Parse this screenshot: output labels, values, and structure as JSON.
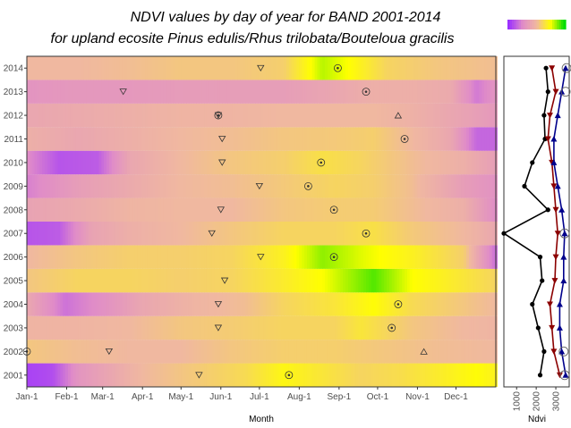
{
  "chart_data": [
    {
      "type": "heatmap",
      "title": "NDVI values by day of year for BAND 2001-2014",
      "subtitle": "for upland ecosite Pinus edulis/Rhus trilobata/Bouteloua gracilis",
      "xlabel": "Month",
      "ylabel": "",
      "x_tick_labels": [
        "Jan-1",
        "Feb-1",
        "Mar-1",
        "Apr-1",
        "May-1",
        "Jun-1",
        "Jul-1",
        "Aug-1",
        "Sep-1",
        "Oct-1",
        "Nov-1",
        "Dec-1"
      ],
      "x_tick_days": [
        1,
        32,
        60,
        91,
        121,
        152,
        182,
        213,
        244,
        274,
        305,
        335
      ],
      "xlim": [
        1,
        366
      ],
      "years": [
        "2001",
        "2002",
        "2003",
        "2004",
        "2005",
        "2006",
        "2007",
        "2008",
        "2009",
        "2010",
        "2011",
        "2012",
        "2013",
        "2014"
      ],
      "colorscale": [
        "#9b30ff",
        "#e08cc8",
        "#f0b8a0",
        "#ffff00",
        "#00dd00"
      ],
      "ndvi_profile_knots": [
        [
          [
            1,
            0.05
          ],
          [
            20,
            0.08
          ],
          [
            40,
            0.3
          ],
          [
            60,
            0.38
          ],
          [
            90,
            0.5
          ],
          [
            130,
            0.56
          ],
          [
            170,
            0.62
          ],
          [
            200,
            0.72
          ],
          [
            230,
            0.66
          ],
          [
            260,
            0.6
          ],
          [
            290,
            0.63
          ],
          [
            320,
            0.68
          ],
          [
            350,
            0.74
          ],
          [
            366,
            0.7
          ]
        ],
        [
          [
            1,
            0.55
          ],
          [
            40,
            0.52
          ],
          [
            80,
            0.5
          ],
          [
            120,
            0.5
          ],
          [
            160,
            0.55
          ],
          [
            200,
            0.58
          ],
          [
            240,
            0.58
          ],
          [
            280,
            0.55
          ],
          [
            320,
            0.52
          ],
          [
            366,
            0.5
          ]
        ],
        [
          [
            1,
            0.48
          ],
          [
            40,
            0.48
          ],
          [
            80,
            0.5
          ],
          [
            120,
            0.55
          ],
          [
            160,
            0.57
          ],
          [
            200,
            0.6
          ],
          [
            240,
            0.6
          ],
          [
            260,
            0.66
          ],
          [
            300,
            0.55
          ],
          [
            340,
            0.5
          ],
          [
            366,
            0.48
          ]
        ],
        [
          [
            1,
            0.4
          ],
          [
            30,
            0.18
          ],
          [
            60,
            0.28
          ],
          [
            90,
            0.4
          ],
          [
            130,
            0.48
          ],
          [
            170,
            0.52
          ],
          [
            200,
            0.6
          ],
          [
            240,
            0.66
          ],
          [
            270,
            0.74
          ],
          [
            300,
            0.62
          ],
          [
            340,
            0.55
          ],
          [
            366,
            0.5
          ]
        ],
        [
          [
            1,
            0.55
          ],
          [
            40,
            0.6
          ],
          [
            80,
            0.6
          ],
          [
            120,
            0.58
          ],
          [
            160,
            0.6
          ],
          [
            200,
            0.68
          ],
          [
            230,
            0.75
          ],
          [
            270,
            0.92
          ],
          [
            300,
            0.75
          ],
          [
            340,
            0.66
          ],
          [
            366,
            0.6
          ]
        ],
        [
          [
            1,
            0.5
          ],
          [
            40,
            0.55
          ],
          [
            80,
            0.58
          ],
          [
            120,
            0.58
          ],
          [
            160,
            0.6
          ],
          [
            200,
            0.7
          ],
          [
            230,
            0.86
          ],
          [
            260,
            0.78
          ],
          [
            300,
            0.7
          ],
          [
            340,
            0.58
          ],
          [
            366,
            0.15
          ]
        ],
        [
          [
            1,
            0.1
          ],
          [
            25,
            0.12
          ],
          [
            50,
            0.38
          ],
          [
            80,
            0.45
          ],
          [
            120,
            0.5
          ],
          [
            160,
            0.55
          ],
          [
            200,
            0.6
          ],
          [
            240,
            0.6
          ],
          [
            270,
            0.64
          ],
          [
            300,
            0.56
          ],
          [
            340,
            0.5
          ],
          [
            366,
            0.4
          ]
        ],
        [
          [
            1,
            0.38
          ],
          [
            40,
            0.42
          ],
          [
            80,
            0.48
          ],
          [
            120,
            0.5
          ],
          [
            160,
            0.5
          ],
          [
            200,
            0.55
          ],
          [
            240,
            0.57
          ],
          [
            270,
            0.57
          ],
          [
            300,
            0.52
          ],
          [
            340,
            0.45
          ],
          [
            366,
            0.25
          ]
        ],
        [
          [
            1,
            0.22
          ],
          [
            40,
            0.35
          ],
          [
            80,
            0.42
          ],
          [
            120,
            0.5
          ],
          [
            160,
            0.52
          ],
          [
            200,
            0.56
          ],
          [
            240,
            0.6
          ],
          [
            270,
            0.58
          ],
          [
            300,
            0.52
          ],
          [
            340,
            0.35
          ],
          [
            366,
            0.28
          ]
        ],
        [
          [
            1,
            0.25
          ],
          [
            25,
            0.1
          ],
          [
            55,
            0.12
          ],
          [
            80,
            0.4
          ],
          [
            120,
            0.5
          ],
          [
            160,
            0.55
          ],
          [
            200,
            0.58
          ],
          [
            230,
            0.64
          ],
          [
            260,
            0.6
          ],
          [
            300,
            0.52
          ],
          [
            340,
            0.45
          ],
          [
            366,
            0.35
          ]
        ],
        [
          [
            1,
            0.45
          ],
          [
            40,
            0.4
          ],
          [
            80,
            0.45
          ],
          [
            120,
            0.5
          ],
          [
            160,
            0.52
          ],
          [
            200,
            0.55
          ],
          [
            240,
            0.56
          ],
          [
            270,
            0.58
          ],
          [
            300,
            0.5
          ],
          [
            330,
            0.4
          ],
          [
            350,
            0.15
          ],
          [
            366,
            0.15
          ]
        ],
        [
          [
            1,
            0.4
          ],
          [
            40,
            0.42
          ],
          [
            80,
            0.45
          ],
          [
            120,
            0.48
          ],
          [
            160,
            0.48
          ],
          [
            200,
            0.5
          ],
          [
            240,
            0.5
          ],
          [
            270,
            0.5
          ],
          [
            300,
            0.46
          ],
          [
            340,
            0.38
          ],
          [
            366,
            0.32
          ]
        ],
        [
          [
            1,
            0.3
          ],
          [
            40,
            0.32
          ],
          [
            80,
            0.32
          ],
          [
            120,
            0.34
          ],
          [
            160,
            0.35
          ],
          [
            200,
            0.35
          ],
          [
            240,
            0.4
          ],
          [
            270,
            0.45
          ],
          [
            300,
            0.45
          ],
          [
            330,
            0.42
          ],
          [
            350,
            0.2
          ],
          [
            366,
            0.3
          ]
        ],
        [
          [
            1,
            0.5
          ],
          [
            40,
            0.5
          ],
          [
            80,
            0.52
          ],
          [
            120,
            0.55
          ],
          [
            160,
            0.55
          ],
          [
            200,
            0.58
          ],
          [
            230,
            0.82
          ],
          [
            250,
            0.75
          ],
          [
            280,
            0.6
          ],
          [
            320,
            0.55
          ],
          [
            366,
            0.52
          ]
        ]
      ],
      "phenology_markers": [
        {
          "year": "2001",
          "min_doy": 135,
          "peak_doy": 205,
          "max_doy": null
        },
        {
          "year": "2002",
          "min_doy": 65,
          "peak_doy": 1,
          "max_doy": 310
        },
        {
          "year": "2003",
          "min_doy": 150,
          "peak_doy": 285,
          "max_doy": null
        },
        {
          "year": "2004",
          "min_doy": 150,
          "peak_doy": 290,
          "max_doy": null
        },
        {
          "year": "2005",
          "min_doy": 155,
          "peak_doy": null,
          "max_doy": null
        },
        {
          "year": "2006",
          "min_doy": 183,
          "peak_doy": 240,
          "max_doy": null
        },
        {
          "year": "2007",
          "min_doy": 145,
          "peak_doy": 265,
          "max_doy": null
        },
        {
          "year": "2008",
          "min_doy": 152,
          "peak_doy": 240,
          "max_doy": null
        },
        {
          "year": "2009",
          "min_doy": 182,
          "peak_doy": 220,
          "max_doy": null
        },
        {
          "year": "2010",
          "min_doy": 153,
          "peak_doy": 230,
          "max_doy": null
        },
        {
          "year": "2011",
          "min_doy": 153,
          "peak_doy": 295,
          "max_doy": null
        },
        {
          "year": "2012",
          "min_doy": 150,
          "peak_doy": 150,
          "max_doy": 290
        },
        {
          "year": "2013",
          "min_doy": 76,
          "peak_doy": 265,
          "max_doy": null
        },
        {
          "year": "2014",
          "min_doy": 183,
          "peak_doy": 243,
          "max_doy": null
        }
      ]
    },
    {
      "type": "line",
      "xlabel": "Ndvi",
      "ylabel": "",
      "x_tick_labels": [
        "1000",
        "2000",
        "3000"
      ],
      "xlim": [
        350,
        3500
      ],
      "categories": [
        "2001",
        "2002",
        "2003",
        "2004",
        "2005",
        "2006",
        "2007",
        "2008",
        "2009",
        "2010",
        "2011",
        "2012",
        "2013",
        "2014"
      ],
      "series": [
        {
          "color": "#000000",
          "marker": "point",
          "values": [
            2200,
            2400,
            2100,
            1800,
            2300,
            2200,
            350,
            2600,
            1400,
            1800,
            2450,
            2400,
            2600,
            2500
          ]
        },
        {
          "color": "#8b0000",
          "marker": "triangle-down",
          "values": [
            3200,
            2900,
            2800,
            2700,
            2950,
            3000,
            3100,
            3000,
            2900,
            2800,
            2600,
            2700,
            3000,
            2800
          ]
        },
        {
          "color": "#00008b",
          "marker": "triangle-up",
          "values": [
            3500,
            3300,
            3200,
            3200,
            3400,
            3400,
            3450,
            3300,
            3100,
            2900,
            2900,
            3100,
            3300,
            3500
          ]
        },
        {
          "color": "#666666",
          "marker": "circle-open",
          "values": [
            3450,
            3400,
            null,
            null,
            null,
            null,
            3450,
            null,
            null,
            null,
            null,
            null,
            3500,
            3550
          ]
        }
      ]
    }
  ]
}
